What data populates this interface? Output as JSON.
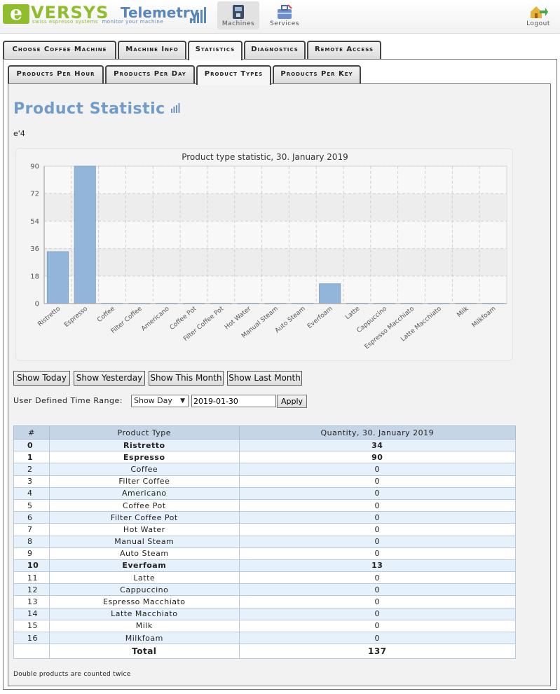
{
  "header": {
    "logo_e": "e",
    "logo_versys": "VERSYS",
    "logo_telemetry": "Telemetry",
    "logo_tag_1": "swiss espresso systems",
    "logo_tag_2": "monitor your machine",
    "nav": [
      {
        "label": "Machines",
        "icon": "coffee-machine-icon",
        "active": true
      },
      {
        "label": "Services",
        "icon": "toolbox-icon",
        "active": false
      },
      {
        "label": "Logout",
        "icon": "logout-icon",
        "active": false
      }
    ]
  },
  "main_tabs": [
    {
      "label": "Choose Coffee Machine",
      "active": false
    },
    {
      "label": "Machine Info",
      "active": false
    },
    {
      "label": "Statistics",
      "active": true
    },
    {
      "label": "Diagnostics",
      "active": false
    },
    {
      "label": "Remote Access",
      "active": false
    }
  ],
  "sub_tabs": [
    {
      "label": "Products Per Hour",
      "active": false
    },
    {
      "label": "Products Per Day",
      "active": false
    },
    {
      "label": "Product Types",
      "active": true
    },
    {
      "label": "Products Per Key",
      "active": false
    }
  ],
  "page": {
    "title": "Product Statistic",
    "title_icon": "bar-chart-icon",
    "machine": "e'4"
  },
  "chart_data": {
    "type": "bar",
    "title": "Product type statistic, 30. January 2019",
    "categories": [
      "Ristretto",
      "Espresso",
      "Coffee",
      "Filter Coffee",
      "Americano",
      "Coffee Pot",
      "Filter Coffee Pot",
      "Hot Water",
      "Manual Steam",
      "Auto Steam",
      "Everfoam",
      "Latte",
      "Cappuccino",
      "Espresso Macchiato",
      "Latte Macchiato",
      "Milk",
      "Milkfoam"
    ],
    "values": [
      34,
      90,
      0,
      0,
      0,
      0,
      0,
      0,
      0,
      0,
      13,
      0,
      0,
      0,
      0,
      0,
      0
    ],
    "yticks": [
      0,
      18,
      36,
      54,
      72,
      90
    ],
    "ylim": [
      0,
      90
    ],
    "grid": true,
    "bar_color": "#93b5d9"
  },
  "buttons": {
    "today": "Show Today",
    "yesterday": "Show Yesterday",
    "this_month": "Show This Month",
    "last_month": "Show Last Month"
  },
  "range": {
    "label": "User Defined Time Range:",
    "select_value": "Show Day",
    "date_value": "2019-01-30",
    "apply": "Apply"
  },
  "table": {
    "headers": [
      "#",
      "Product Type",
      "Quantity, 30. January 2019"
    ],
    "rows": [
      {
        "idx": "0",
        "name": "Ristretto",
        "qty": "34"
      },
      {
        "idx": "1",
        "name": "Espresso",
        "qty": "90"
      },
      {
        "idx": "2",
        "name": "Coffee",
        "qty": "0"
      },
      {
        "idx": "3",
        "name": "Filter Coffee",
        "qty": "0"
      },
      {
        "idx": "4",
        "name": "Americano",
        "qty": "0"
      },
      {
        "idx": "5",
        "name": "Coffee Pot",
        "qty": "0"
      },
      {
        "idx": "6",
        "name": "Filter Coffee Pot",
        "qty": "0"
      },
      {
        "idx": "7",
        "name": "Hot Water",
        "qty": "0"
      },
      {
        "idx": "8",
        "name": "Manual Steam",
        "qty": "0"
      },
      {
        "idx": "9",
        "name": "Auto Steam",
        "qty": "0"
      },
      {
        "idx": "10",
        "name": "Everfoam",
        "qty": "13"
      },
      {
        "idx": "11",
        "name": "Latte",
        "qty": "0"
      },
      {
        "idx": "12",
        "name": "Cappuccino",
        "qty": "0"
      },
      {
        "idx": "13",
        "name": "Espresso Macchiato",
        "qty": "0"
      },
      {
        "idx": "14",
        "name": "Latte Macchiato",
        "qty": "0"
      },
      {
        "idx": "15",
        "name": "Milk",
        "qty": "0"
      },
      {
        "idx": "16",
        "name": "Milkfoam",
        "qty": "0"
      }
    ],
    "total_label": "Total",
    "total_value": "137"
  },
  "footnote": "Double products are counted twice"
}
